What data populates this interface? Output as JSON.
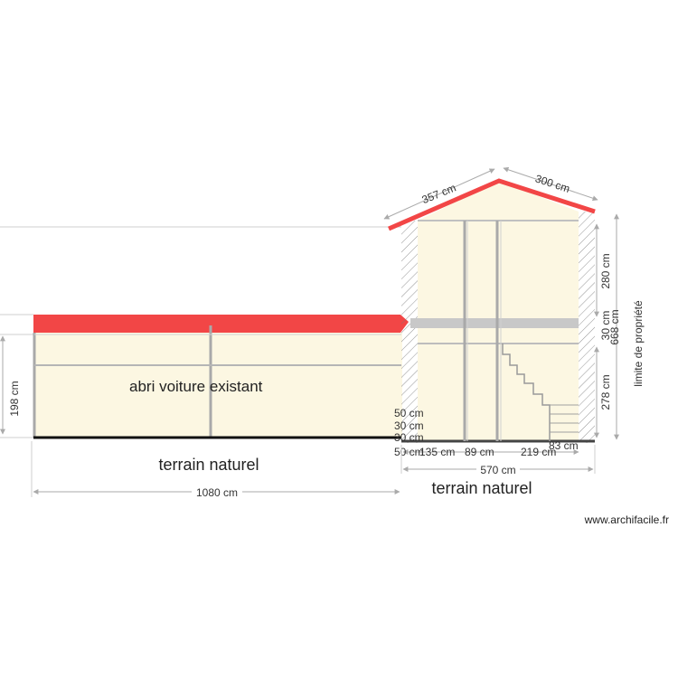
{
  "labels": {
    "carport": "abri voiture existant",
    "terrain_left": "terrain naturel",
    "terrain_right": "terrain naturel",
    "limit": "limite de propriété",
    "watermark": "www.archifacile.fr"
  },
  "dimensions": {
    "roof_left": "357 cm",
    "roof_right": "300 cm",
    "upper_height": "280 cm",
    "floor_thickness": "30 cm",
    "total_height": "668 cm",
    "lower_height": "278 cm",
    "stair_step": "83 cm",
    "carport_height": "198 cm",
    "carport_length": "1080 cm",
    "house_width": "570 cm",
    "seg_1": "135 cm",
    "seg_2": "89 cm",
    "seg_3": "219 cm",
    "small_50": "50 cm",
    "small_30a": "30 cm",
    "small_30b": "30 cm",
    "small_50b": "50 cm"
  },
  "colors": {
    "roof": "#f24646",
    "fill": "#fcf7e2",
    "wall": "#a9a9a9",
    "floor_slab": "#c8c8c8"
  }
}
